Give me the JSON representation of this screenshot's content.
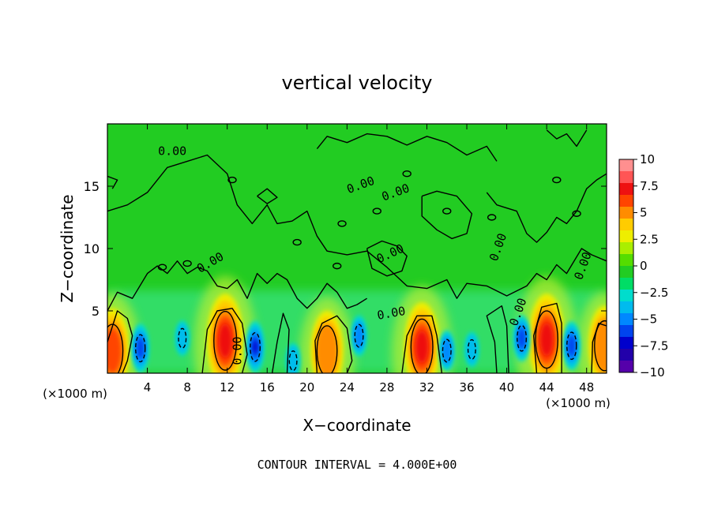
{
  "chart_data": {
    "type": "heatmap",
    "title": "vertical velocity",
    "xlabel": "X−coordinate",
    "ylabel": "Z−coordinate",
    "x_unit_left": "(×1000 m)",
    "x_unit_right": "(×1000 m)",
    "xlim": [
      0,
      50
    ],
    "ylim": [
      0,
      20
    ],
    "x_ticks": [
      4,
      8,
      12,
      16,
      20,
      24,
      28,
      32,
      36,
      40,
      44,
      48
    ],
    "y_ticks": [
      5,
      10,
      15
    ],
    "colorbar": {
      "labels": [
        "10",
        "7.5",
        "5",
        "2.5",
        "0",
        "−2.5",
        "−5",
        "−7.5",
        "−10"
      ],
      "values": [
        10,
        7.5,
        5,
        2.5,
        0,
        -2.5,
        -5,
        -7.5,
        -10
      ],
      "colors": [
        "#ff8f8f",
        "#ff5555",
        "#ee1111",
        "#ff4400",
        "#ff8c00",
        "#ffcc00",
        "#eeee00",
        "#aaee00",
        "#55dd00",
        "#22cc22",
        "#00dd66",
        "#00ddcc",
        "#00bbee",
        "#0088ff",
        "#0044ee",
        "#0000cc",
        "#2200aa",
        "#5500aa"
      ]
    },
    "contour_labels": [
      "0.00",
      "0.00",
      "0.00",
      "0.00",
      "0.00",
      "0.00",
      "0.00",
      "0.00",
      "0.00",
      "0.00"
    ],
    "updrafts": [
      {
        "x": 0.5,
        "z": 1.8,
        "value": 6
      },
      {
        "x": 11.8,
        "z": 2.6,
        "value": 8
      },
      {
        "x": 22.0,
        "z": 1.8,
        "value": 5
      },
      {
        "x": 31.5,
        "z": 2.1,
        "value": 7
      },
      {
        "x": 44.0,
        "z": 2.7,
        "value": 7.5
      },
      {
        "x": 49.8,
        "z": 2.2,
        "value": 5
      }
    ],
    "downdrafts": [
      {
        "x": 3.3,
        "z": 2.0,
        "value": -5.5
      },
      {
        "x": 7.5,
        "z": 2.8,
        "value": -3
      },
      {
        "x": 14.8,
        "z": 2.1,
        "value": -6
      },
      {
        "x": 18.6,
        "z": 1.0,
        "value": -3
      },
      {
        "x": 25.2,
        "z": 3.0,
        "value": -4
      },
      {
        "x": 34.0,
        "z": 1.8,
        "value": -4
      },
      {
        "x": 36.5,
        "z": 1.9,
        "value": -3
      },
      {
        "x": 41.5,
        "z": 2.8,
        "value": -5
      },
      {
        "x": 46.5,
        "z": 2.2,
        "value": -5.5
      }
    ],
    "footer": "CONTOUR INTERVAL = 4.000E+00"
  }
}
